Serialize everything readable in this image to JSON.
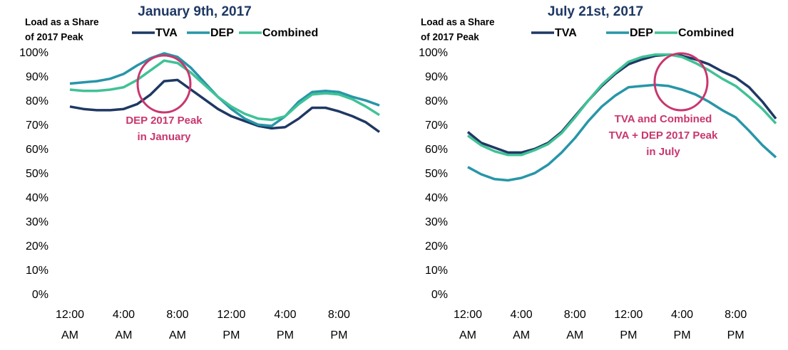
{
  "chart_data": [
    {
      "type": "line",
      "title": "January 9th, 2017",
      "ylabel": [
        "Load as a Share",
        "of 2017 Peak"
      ],
      "categories": [
        "12:00 AM",
        null,
        null,
        null,
        "4:00 AM",
        null,
        null,
        null,
        "8:00 AM",
        null,
        null,
        null,
        "12:00 PM",
        null,
        null,
        null,
        "4:00 PM",
        null,
        null,
        null,
        "8:00 PM",
        null,
        null,
        null
      ],
      "series": [
        {
          "name": "TVA",
          "color": "#1f3864",
          "values": [
            78,
            77,
            76.5,
            76.5,
            77,
            79,
            83,
            88.5,
            89,
            85,
            81,
            77,
            74,
            72,
            70,
            69,
            69.5,
            73,
            77.5,
            77.5,
            76,
            74,
            71.5,
            67.5
          ]
        },
        {
          "name": "DEP",
          "color": "#2796a8",
          "values": [
            87.5,
            88,
            88.5,
            89.5,
            91.5,
            95,
            98,
            100,
            98.5,
            94,
            88,
            82,
            77,
            73,
            70.5,
            70,
            74,
            80,
            84,
            84.5,
            84,
            82,
            80.5,
            78.5
          ]
        },
        {
          "name": "Combined",
          "color": "#40c296",
          "values": [
            85,
            84.5,
            84.5,
            85,
            86,
            89,
            93,
            97,
            96,
            92,
            87,
            82,
            78,
            75,
            73,
            72.5,
            74,
            79,
            83,
            83.5,
            83,
            81,
            78,
            74.5
          ]
        }
      ],
      "annotation": [
        "DEP 2017 Peak",
        "in January"
      ],
      "ylim": [
        0,
        100
      ],
      "yticks": [
        {
          "value": 0,
          "label": "0%"
        },
        {
          "value": 10,
          "label": "10%"
        },
        {
          "value": 20,
          "label": "20%"
        },
        {
          "value": 30,
          "label": "30%"
        },
        {
          "value": 40,
          "label": "40%"
        },
        {
          "value": 50,
          "label": "50%"
        },
        {
          "value": 60,
          "label": "60%"
        },
        {
          "value": 70,
          "label": "70%"
        },
        {
          "value": 80,
          "label": "80%"
        },
        {
          "value": 90,
          "label": "90%"
        },
        {
          "value": 100,
          "label": "100%"
        }
      ]
    },
    {
      "type": "line",
      "title": "July 21st, 2017",
      "ylabel": [
        "Load as a Share",
        "of 2017 Peak"
      ],
      "categories": [
        "12:00 AM",
        null,
        null,
        null,
        "4:00 AM",
        null,
        null,
        null,
        "8:00 AM",
        null,
        null,
        null,
        "12:00 PM",
        null,
        null,
        null,
        "4:00 PM",
        null,
        null,
        null,
        "8:00 PM",
        null,
        null,
        null
      ],
      "series": [
        {
          "name": "TVA",
          "color": "#1f3864",
          "values": [
            67.5,
            63,
            61,
            59,
            59,
            60.5,
            63,
            67.5,
            74,
            80.5,
            86.5,
            91.5,
            95.5,
            97.5,
            99,
            99.5,
            99,
            97.5,
            95.5,
            92.5,
            90,
            86,
            80,
            73
          ]
        },
        {
          "name": "DEP",
          "color": "#2796a8",
          "values": [
            53,
            50,
            48,
            47.5,
            48.5,
            50.5,
            54,
            59,
            65,
            72,
            78,
            82.5,
            86,
            86.5,
            87,
            86.5,
            85,
            83,
            80,
            76.5,
            73.5,
            68,
            62,
            57
          ]
        },
        {
          "name": "Combined",
          "color": "#40c296",
          "values": [
            66,
            62,
            59.5,
            58,
            58,
            60,
            62.5,
            67,
            73.5,
            80.5,
            87,
            92,
            96.5,
            98.5,
            99.5,
            99.5,
            98.5,
            96,
            93,
            89.5,
            86.5,
            82,
            77,
            71
          ]
        }
      ],
      "annotation": [
        "TVA and Combined",
        "TVA + DEP 2017 Peak",
        "in July"
      ],
      "ylim": [
        0,
        100
      ],
      "yticks": [
        {
          "value": 0,
          "label": "0%"
        },
        {
          "value": 10,
          "label": "10%"
        },
        {
          "value": 20,
          "label": "20%"
        },
        {
          "value": 30,
          "label": "30%"
        },
        {
          "value": 40,
          "label": "40%"
        },
        {
          "value": 50,
          "label": "50%"
        },
        {
          "value": 60,
          "label": "60%"
        },
        {
          "value": 70,
          "label": "70%"
        },
        {
          "value": 80,
          "label": "80%"
        },
        {
          "value": 90,
          "label": "90%"
        },
        {
          "value": 100,
          "label": "100%"
        }
      ]
    }
  ]
}
